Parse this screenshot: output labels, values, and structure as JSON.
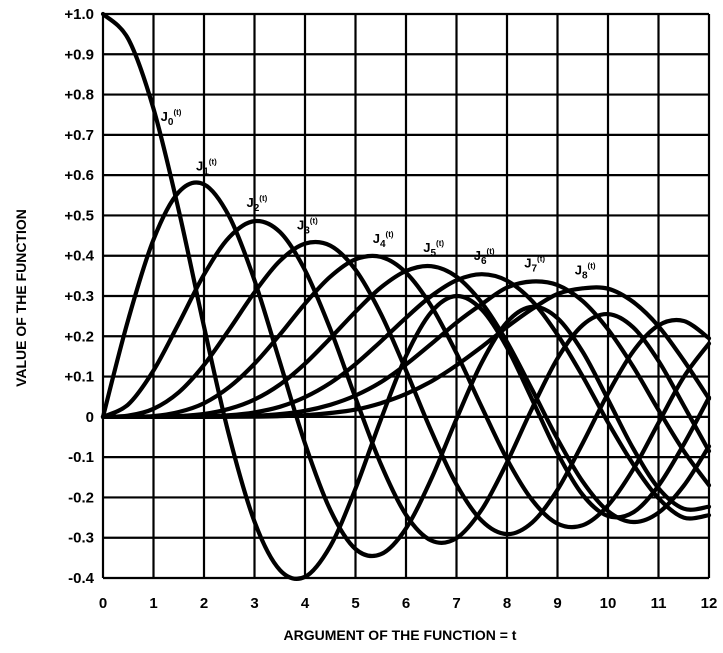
{
  "chart_data": {
    "type": "line",
    "title": "",
    "xlabel": "ARGUMENT OF THE FUNCTION = t",
    "ylabel": "VALUE OF THE FUNCTION",
    "xlim": [
      0,
      12
    ],
    "ylim": [
      -0.4,
      1.0
    ],
    "grid": true,
    "x_ticks": [
      "0",
      "1",
      "2",
      "3",
      "4",
      "5",
      "6",
      "7",
      "8",
      "9",
      "10",
      "11",
      "12"
    ],
    "y_ticks": [
      "+1.0",
      "+0.9",
      "+0.8",
      "+0.7",
      "+0.6",
      "+0.5",
      "+0.4",
      "+0.3",
      "+0.2",
      "+0.1",
      "0",
      "-0.1",
      "-0.2",
      "-0.3",
      "-0.4"
    ],
    "x": [
      0,
      0.5,
      1,
      1.5,
      2,
      2.5,
      3,
      3.5,
      4,
      4.5,
      5,
      5.5,
      6,
      6.5,
      7,
      7.5,
      8,
      8.5,
      9,
      9.5,
      10,
      10.5,
      11,
      11.5,
      12
    ],
    "series": [
      {
        "name": "J0(t)",
        "values": [
          1.0,
          0.938,
          0.765,
          0.512,
          0.224,
          -0.048,
          -0.26,
          -0.38,
          -0.397,
          -0.321,
          -0.178,
          -0.007,
          0.151,
          0.26,
          0.3,
          0.266,
          0.172,
          0.042,
          -0.09,
          -0.194,
          -0.246,
          -0.237,
          -0.171,
          -0.068,
          0.048
        ]
      },
      {
        "name": "J1(t)",
        "values": [
          0.0,
          0.242,
          0.44,
          0.558,
          0.577,
          0.497,
          0.339,
          0.137,
          -0.066,
          -0.231,
          -0.328,
          -0.341,
          -0.277,
          -0.154,
          -0.005,
          0.135,
          0.235,
          0.273,
          0.245,
          0.161,
          0.043,
          -0.079,
          -0.177,
          -0.228,
          -0.223
        ]
      },
      {
        "name": "J2(t)",
        "values": [
          0.0,
          0.031,
          0.115,
          0.232,
          0.353,
          0.446,
          0.486,
          0.459,
          0.364,
          0.218,
          0.047,
          -0.117,
          -0.243,
          -0.307,
          -0.301,
          -0.23,
          -0.113,
          0.022,
          0.145,
          0.228,
          0.255,
          0.222,
          0.139,
          0.028,
          -0.085
        ]
      },
      {
        "name": "J3(t)",
        "values": [
          0.0,
          0.003,
          0.02,
          0.061,
          0.129,
          0.217,
          0.309,
          0.387,
          0.43,
          0.425,
          0.365,
          0.256,
          0.115,
          -0.035,
          -0.168,
          -0.258,
          -0.291,
          -0.262,
          -0.181,
          -0.065,
          0.058,
          0.163,
          0.227,
          0.238,
          0.195
        ]
      },
      {
        "name": "J4(t)",
        "values": [
          0.0,
          0.0002,
          0.002,
          0.012,
          0.034,
          0.074,
          0.132,
          0.204,
          0.281,
          0.348,
          0.391,
          0.397,
          0.358,
          0.275,
          0.158,
          0.024,
          -0.105,
          -0.207,
          -0.265,
          -0.269,
          -0.22,
          -0.13,
          -0.015,
          0.099,
          0.182
        ]
      },
      {
        "name": "J5(t)",
        "values": [
          0.0,
          0.0,
          0.0002,
          0.002,
          0.007,
          0.02,
          0.043,
          0.08,
          0.132,
          0.195,
          0.261,
          0.321,
          0.362,
          0.374,
          0.348,
          0.283,
          0.186,
          0.067,
          -0.055,
          -0.161,
          -0.234,
          -0.261,
          -0.238,
          -0.171,
          -0.073
        ]
      },
      {
        "name": "J6(t)",
        "values": [
          0.0,
          0.0,
          0.0,
          0.0002,
          0.001,
          0.004,
          0.011,
          0.025,
          0.049,
          0.084,
          0.131,
          0.187,
          0.246,
          0.3,
          0.339,
          0.354,
          0.338,
          0.287,
          0.204,
          0.1,
          -0.014,
          -0.118,
          -0.202,
          -0.25,
          -0.244
        ]
      },
      {
        "name": "J7(t)",
        "values": [
          0.0,
          0.0,
          0.0,
          0.0,
          0.0002,
          0.0008,
          0.0025,
          0.0068,
          0.015,
          0.03,
          0.053,
          0.086,
          0.13,
          0.181,
          0.234,
          0.28,
          0.321,
          0.336,
          0.327,
          0.287,
          0.217,
          0.124,
          0.017,
          -0.085,
          -0.17
        ]
      },
      {
        "name": "J8(t)",
        "values": [
          0.0,
          0.0,
          0.0,
          0.0,
          0.0,
          0.0001,
          0.0004,
          0.0016,
          0.004,
          0.0095,
          0.018,
          0.034,
          0.057,
          0.088,
          0.128,
          0.174,
          0.223,
          0.268,
          0.305,
          0.319,
          0.318,
          0.285,
          0.225,
          0.14,
          0.045
        ]
      }
    ],
    "annotations": [
      {
        "base": "J",
        "sub": "0",
        "sup": "(t)",
        "series": "J0(t)"
      },
      {
        "base": "J",
        "sub": "1",
        "sup": "(t)",
        "series": "J1(t)"
      },
      {
        "base": "J",
        "sub": "2",
        "sup": "(t)",
        "series": "J2(t)"
      },
      {
        "base": "J",
        "sub": "3",
        "sup": "(t)",
        "series": "J3(t)"
      },
      {
        "base": "J",
        "sub": "4",
        "sup": "(t)",
        "series": "J4(t)"
      },
      {
        "base": "J",
        "sub": "5",
        "sup": "(t)",
        "series": "J5(t)"
      },
      {
        "base": "J",
        "sub": "6",
        "sup": "(t)",
        "series": "J6(t)"
      },
      {
        "base": "J",
        "sub": "7",
        "sup": "(t)",
        "series": "J7(t)"
      },
      {
        "base": "J",
        "sub": "8",
        "sup": "(t)",
        "series": "J8(t)"
      }
    ],
    "line_color": "#000000",
    "grid_color": "#000000",
    "background_color": "#ffffff"
  }
}
